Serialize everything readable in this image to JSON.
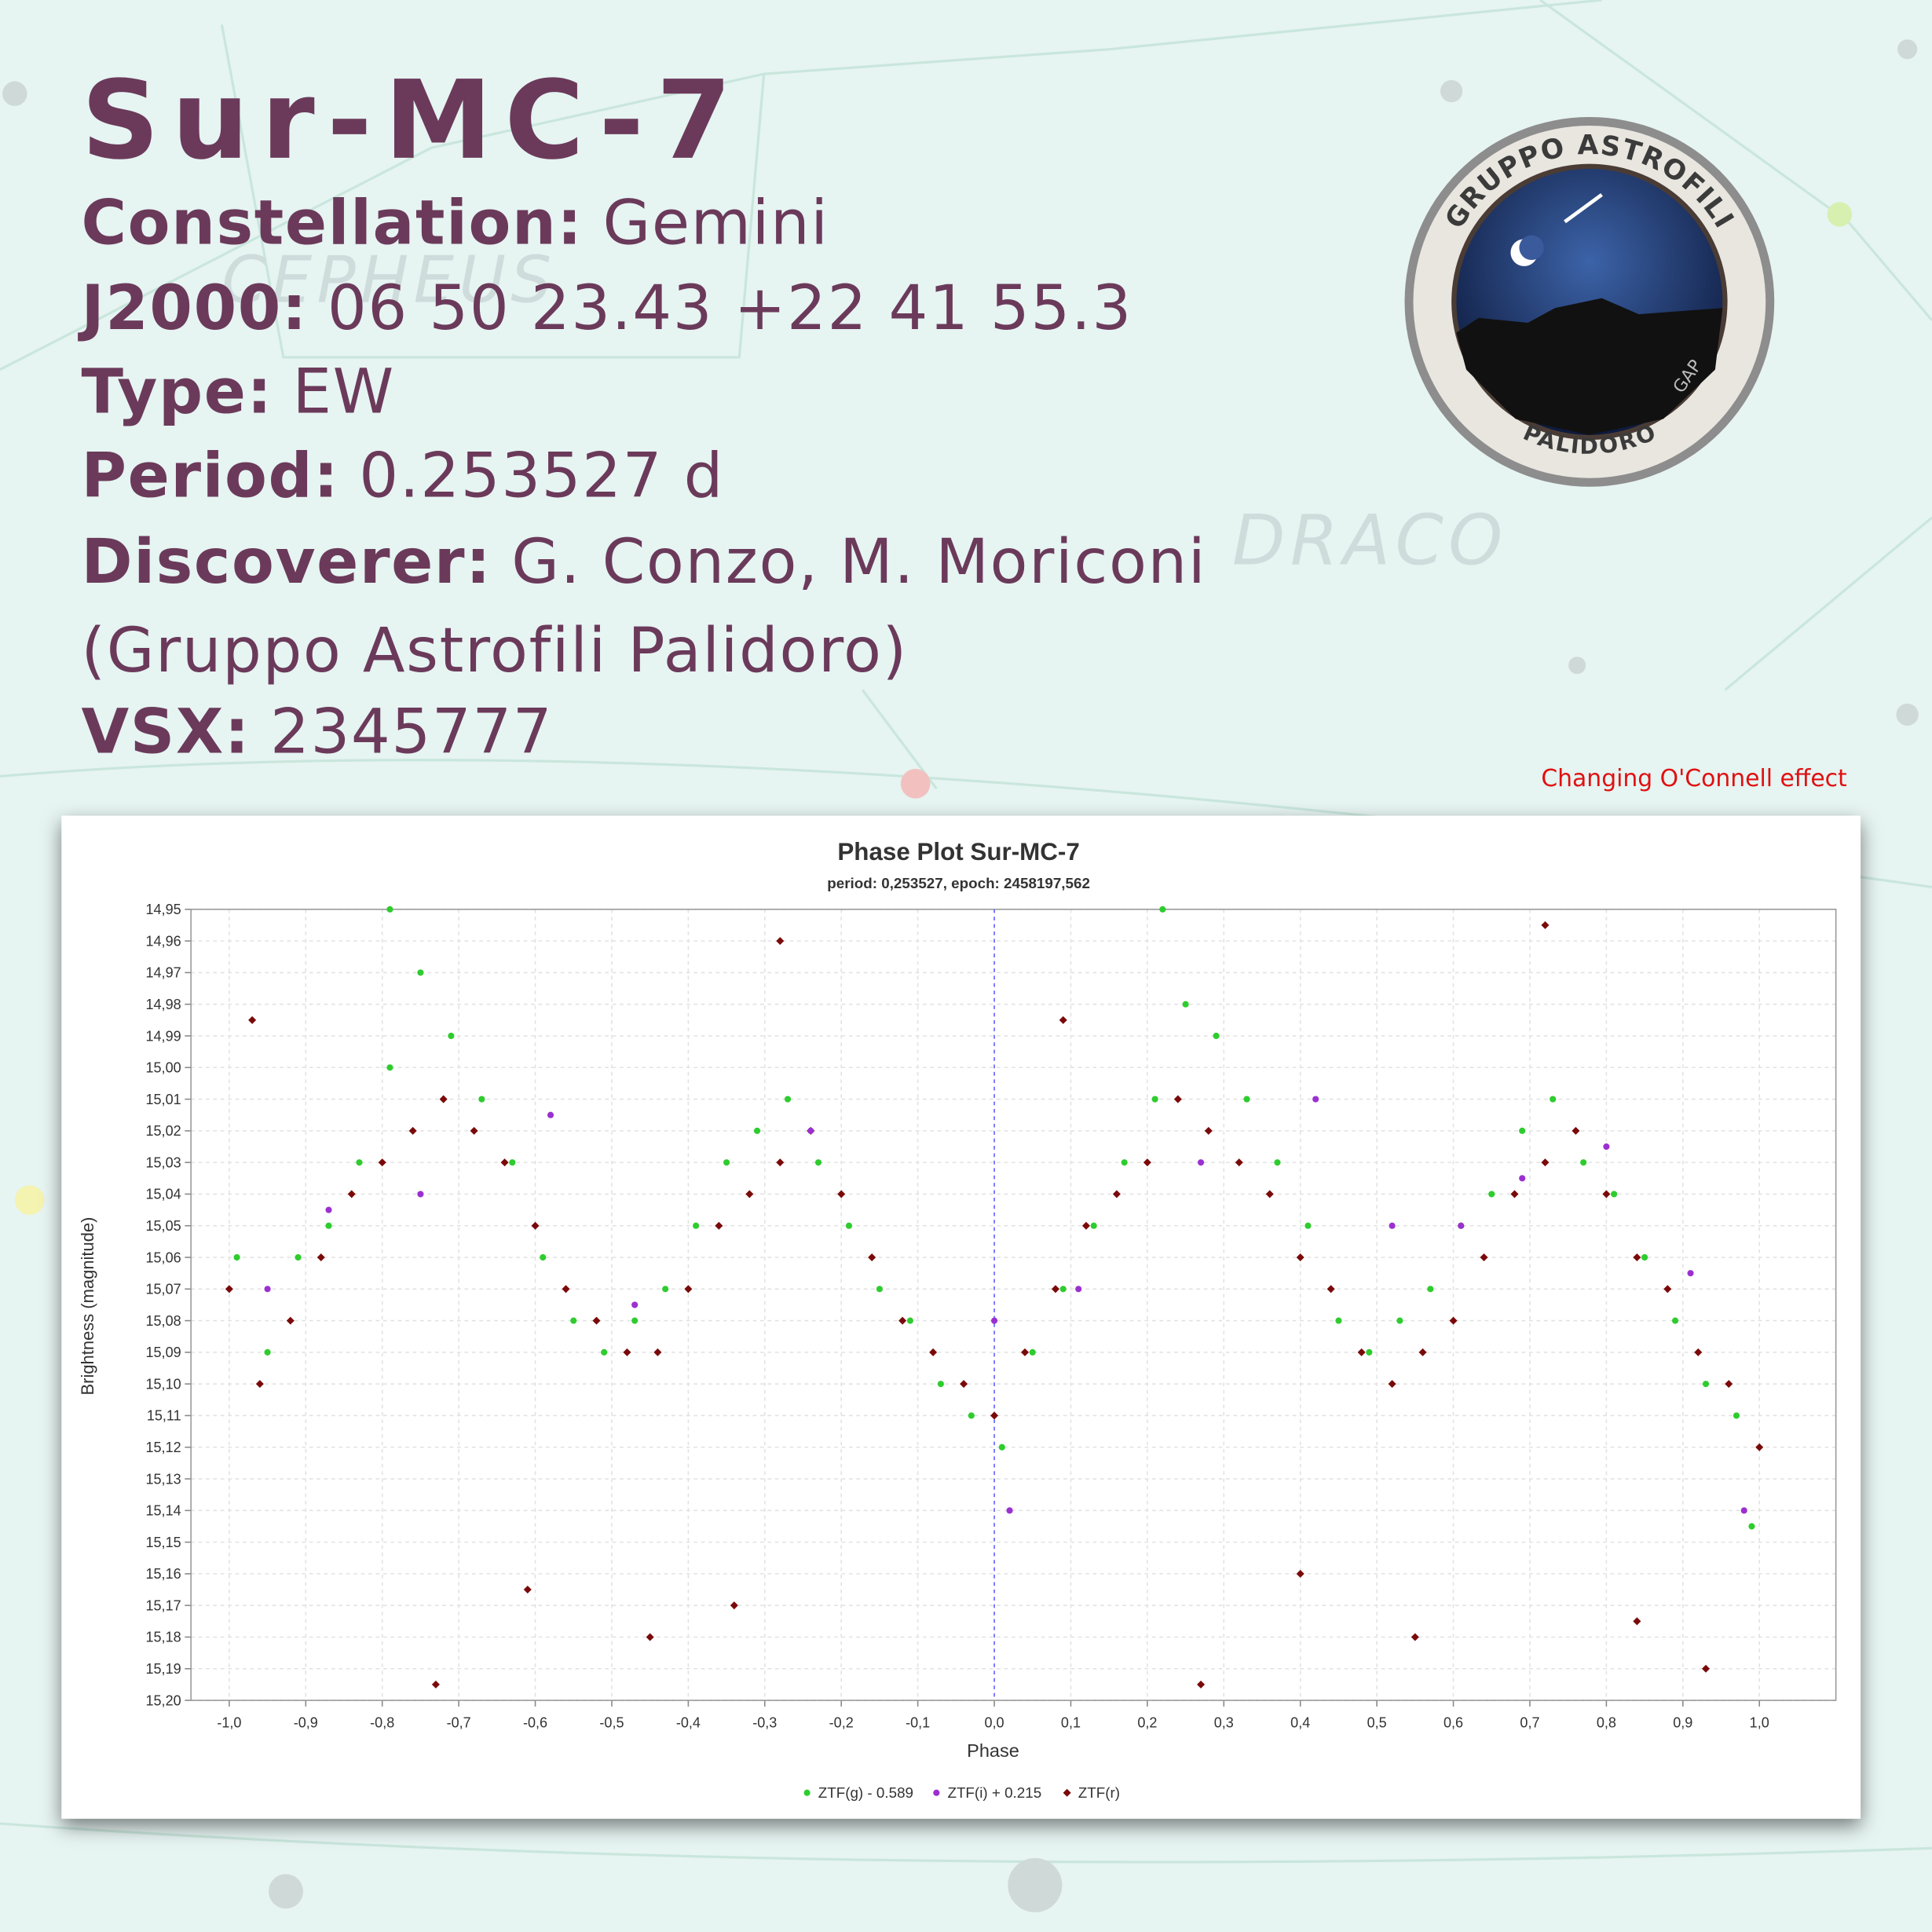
{
  "title": "Sur-MC-7",
  "details": [
    {
      "label": "Constellation:",
      "value": "Gemini"
    },
    {
      "label": "J2000:",
      "value": "06 50 23.43 +22 41 55.3"
    },
    {
      "label": "Type:",
      "value": "EW"
    },
    {
      "label": "Period:",
      "value": "0.253527 d"
    },
    {
      "label": "Discoverer:",
      "value": "G. Conzo, M. Moriconi"
    },
    {
      "label": "VSX:",
      "value": "2345777"
    }
  ],
  "affiliation": "(Gruppo Astrofili Palidoro)",
  "note": "Changing O'Connell effect",
  "background_labels": [
    "CEPHEUS",
    "DRACO"
  ],
  "logo": {
    "top": "GRUPPO ASTROFILI",
    "bottom": "PALIDORO",
    "side": "GAP"
  },
  "chart_data": {
    "type": "scatter",
    "title": "Phase Plot Sur-MC-7",
    "subtitle": "period: 0,253527, epoch: 2458197,562",
    "x_label": "Phase",
    "y_label": "Brightness (magnitude)",
    "xlim": [
      -1.05,
      1.1
    ],
    "ylim": [
      14.95,
      15.2
    ],
    "y_inverted": true,
    "grid": true,
    "legend": "bottom",
    "x_reference": 0,
    "xticks": [
      {
        "value": -1.0,
        "label": "-1,0"
      },
      {
        "value": -0.9,
        "label": "-0,9"
      },
      {
        "value": -0.8,
        "label": "-0,8"
      },
      {
        "value": -0.7,
        "label": "-0,7"
      },
      {
        "value": -0.6,
        "label": "-0,6"
      },
      {
        "value": -0.5,
        "label": "-0,5"
      },
      {
        "value": -0.4,
        "label": "-0,4"
      },
      {
        "value": -0.3,
        "label": "-0,3"
      },
      {
        "value": -0.2,
        "label": "-0,2"
      },
      {
        "value": -0.1,
        "label": "-0,1"
      },
      {
        "value": 0.0,
        "label": "0,0"
      },
      {
        "value": 0.1,
        "label": "0,1"
      },
      {
        "value": 0.2,
        "label": "0,2"
      },
      {
        "value": 0.3,
        "label": "0,3"
      },
      {
        "value": 0.4,
        "label": "0,4"
      },
      {
        "value": 0.5,
        "label": "0,5"
      },
      {
        "value": 0.6,
        "label": "0,6"
      },
      {
        "value": 0.7,
        "label": "0,7"
      },
      {
        "value": 0.8,
        "label": "0,8"
      },
      {
        "value": 0.9,
        "label": "0,9"
      },
      {
        "value": 1.0,
        "label": "1,0"
      }
    ],
    "yticks": [
      {
        "value": 14.95,
        "label": "14,95"
      },
      {
        "value": 14.96,
        "label": "14,96"
      },
      {
        "value": 14.97,
        "label": "14,97"
      },
      {
        "value": 14.98,
        "label": "14,98"
      },
      {
        "value": 14.99,
        "label": "14,99"
      },
      {
        "value": 15.0,
        "label": "15,00"
      },
      {
        "value": 15.01,
        "label": "15,01"
      },
      {
        "value": 15.02,
        "label": "15,02"
      },
      {
        "value": 15.03,
        "label": "15,03"
      },
      {
        "value": 15.04,
        "label": "15,04"
      },
      {
        "value": 15.05,
        "label": "15,05"
      },
      {
        "value": 15.06,
        "label": "15,06"
      },
      {
        "value": 15.07,
        "label": "15,07"
      },
      {
        "value": 15.08,
        "label": "15,08"
      },
      {
        "value": 15.09,
        "label": "15,09"
      },
      {
        "value": 15.1,
        "label": "15,10"
      },
      {
        "value": 15.11,
        "label": "15,11"
      },
      {
        "value": 15.12,
        "label": "15,12"
      },
      {
        "value": 15.13,
        "label": "15,13"
      },
      {
        "value": 15.14,
        "label": "15,14"
      },
      {
        "value": 15.15,
        "label": "15,15"
      },
      {
        "value": 15.16,
        "label": "15,16"
      },
      {
        "value": 15.17,
        "label": "15,17"
      },
      {
        "value": 15.18,
        "label": "15,18"
      },
      {
        "value": 15.19,
        "label": "15,19"
      },
      {
        "value": 15.2,
        "label": "15,20"
      }
    ],
    "series": [
      {
        "name": "ZTF(g) - 0.589",
        "color": "#2ecc2e",
        "marker": "circle",
        "x": [
          -0.99,
          -0.95,
          -0.91,
          -0.87,
          -0.83,
          -0.79,
          -0.75,
          -0.71,
          -0.67,
          -0.63,
          -0.59,
          -0.55,
          -0.51,
          -0.47,
          -0.43,
          -0.39,
          -0.35,
          -0.31,
          -0.27,
          -0.23,
          -0.19,
          -0.15,
          -0.11,
          -0.07,
          -0.03,
          0.01,
          0.05,
          0.09,
          0.13,
          0.17,
          0.21,
          0.25,
          0.29,
          0.33,
          0.37,
          0.41,
          0.45,
          0.49,
          0.53,
          0.57,
          0.61,
          0.65,
          0.69,
          0.73,
          0.77,
          0.81,
          0.85,
          0.89,
          0.93,
          0.97,
          0.99,
          -0.79,
          0.22
        ],
        "values": [
          15.06,
          15.09,
          15.06,
          15.05,
          15.03,
          15.0,
          14.97,
          14.99,
          15.01,
          15.03,
          15.06,
          15.08,
          15.09,
          15.08,
          15.07,
          15.05,
          15.03,
          15.02,
          15.01,
          15.03,
          15.05,
          15.07,
          15.08,
          15.1,
          15.11,
          15.12,
          15.09,
          15.07,
          15.05,
          15.03,
          15.01,
          14.98,
          14.99,
          15.01,
          15.03,
          15.05,
          15.08,
          15.09,
          15.08,
          15.07,
          15.05,
          15.04,
          15.02,
          15.01,
          15.03,
          15.04,
          15.06,
          15.08,
          15.1,
          15.11,
          15.145,
          14.95,
          14.95
        ]
      },
      {
        "name": "ZTF(i) + 0.215",
        "color": "#9b30d0",
        "marker": "circle",
        "x": [
          -0.95,
          -0.87,
          -0.75,
          -0.58,
          -0.47,
          -0.24,
          0.0,
          0.02,
          0.11,
          0.27,
          0.42,
          0.52,
          0.61,
          0.69,
          0.8,
          0.91,
          0.98
        ],
        "values": [
          15.07,
          15.045,
          15.04,
          15.015,
          15.075,
          15.02,
          15.08,
          15.14,
          15.07,
          15.03,
          15.01,
          15.05,
          15.05,
          15.035,
          15.025,
          15.065,
          15.14
        ]
      },
      {
        "name": "ZTF(r)",
        "color": "#7a0a0a",
        "marker": "diamond",
        "x": [
          -1.0,
          -0.96,
          -0.92,
          -0.88,
          -0.84,
          -0.8,
          -0.76,
          -0.72,
          -0.68,
          -0.64,
          -0.6,
          -0.56,
          -0.52,
          -0.48,
          -0.44,
          -0.4,
          -0.36,
          -0.32,
          -0.28,
          -0.24,
          -0.2,
          -0.16,
          -0.12,
          -0.08,
          -0.04,
          0.0,
          0.04,
          0.08,
          0.12,
          0.16,
          0.2,
          0.24,
          0.28,
          0.32,
          0.36,
          0.4,
          0.44,
          0.48,
          0.52,
          0.56,
          0.6,
          0.64,
          0.68,
          0.72,
          0.76,
          0.8,
          0.84,
          0.88,
          0.92,
          0.96,
          1.0,
          -0.73,
          -0.61,
          -0.45,
          -0.34,
          0.27,
          0.4,
          0.55,
          0.84,
          0.93,
          -0.97,
          0.09,
          -0.28,
          0.72
        ],
        "values": [
          15.07,
          15.1,
          15.08,
          15.06,
          15.04,
          15.03,
          15.02,
          15.01,
          15.02,
          15.03,
          15.05,
          15.07,
          15.08,
          15.09,
          15.09,
          15.07,
          15.05,
          15.04,
          15.03,
          15.02,
          15.04,
          15.06,
          15.08,
          15.09,
          15.1,
          15.11,
          15.09,
          15.07,
          15.05,
          15.04,
          15.03,
          15.01,
          15.02,
          15.03,
          15.04,
          15.06,
          15.07,
          15.09,
          15.1,
          15.09,
          15.08,
          15.06,
          15.04,
          15.03,
          15.02,
          15.04,
          15.06,
          15.07,
          15.09,
          15.1,
          15.12,
          15.195,
          15.165,
          15.18,
          15.17,
          15.195,
          15.16,
          15.18,
          15.175,
          15.19,
          14.985,
          14.985,
          14.96,
          14.955
        ]
      }
    ]
  }
}
